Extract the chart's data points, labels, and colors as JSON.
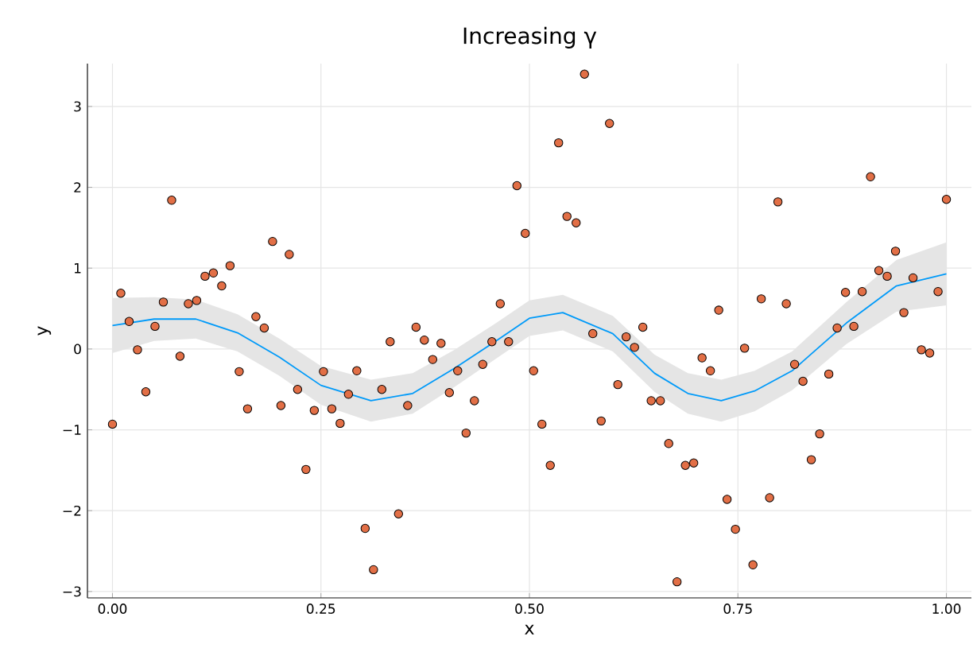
{
  "chart_data": {
    "type": "scatter",
    "title": "Increasing γ",
    "xlabel": "x",
    "ylabel": "y",
    "xlim": [
      -0.03,
      1.03
    ],
    "ylim": [
      -3.08,
      3.53
    ],
    "xticks": [
      {
        "value": 0,
        "label": "0.00"
      },
      {
        "value": 0.25,
        "label": "0.25"
      },
      {
        "value": 0.5,
        "label": "0.50"
      },
      {
        "value": 0.75,
        "label": "0.75"
      },
      {
        "value": 1,
        "label": "1.00"
      }
    ],
    "yticks": [
      {
        "value": -3,
        "label": "−3"
      },
      {
        "value": -2,
        "label": "−2"
      },
      {
        "value": -1,
        "label": "−1"
      },
      0,
      1,
      2,
      3
    ],
    "grid": true,
    "series": [
      {
        "type": "line",
        "color": "#009af9",
        "x": [
          0,
          0.05,
          0.1,
          0.15,
          0.2,
          0.25,
          0.31,
          0.36,
          0.41,
          0.46,
          0.5,
          0.54,
          0.6,
          0.65,
          0.69,
          0.73,
          0.77,
          0.815,
          0.88,
          0.94,
          1.0
        ],
        "values": [
          0.29,
          0.37,
          0.37,
          0.2,
          -0.1,
          -0.45,
          -0.64,
          -0.55,
          -0.24,
          0.1,
          0.38,
          0.45,
          0.19,
          -0.3,
          -0.55,
          -0.64,
          -0.52,
          -0.27,
          0.32,
          0.78,
          0.93
        ],
        "lower": [
          -0.05,
          0.1,
          0.13,
          -0.03,
          -0.33,
          -0.69,
          -0.9,
          -0.8,
          -0.47,
          -0.12,
          0.16,
          0.23,
          -0.03,
          -0.53,
          -0.8,
          -0.9,
          -0.77,
          -0.51,
          0.06,
          0.46,
          0.54
        ],
        "upper": [
          0.63,
          0.64,
          0.61,
          0.43,
          0.13,
          -0.21,
          -0.38,
          -0.3,
          -0.01,
          0.32,
          0.6,
          0.67,
          0.41,
          -0.07,
          -0.3,
          -0.38,
          -0.27,
          -0.03,
          0.58,
          1.1,
          1.32
        ]
      },
      {
        "color": "#e26f46",
        "marker": "circle",
        "x": [
          0,
          0.01,
          0.02,
          0.03,
          0.04,
          0.051,
          0.061,
          0.071,
          0.081,
          0.091,
          0.101,
          0.111,
          0.121,
          0.131,
          0.141,
          0.152,
          0.162,
          0.172,
          0.182,
          0.192,
          0.202,
          0.212,
          0.222,
          0.232,
          0.242,
          0.253,
          0.263,
          0.273,
          0.283,
          0.293,
          0.303,
          0.313,
          0.323,
          0.333,
          0.343,
          0.354,
          0.364,
          0.374,
          0.384,
          0.394,
          0.404,
          0.414,
          0.424,
          0.434,
          0.444,
          0.455,
          0.465,
          0.475,
          0.485,
          0.495,
          0.505,
          0.515,
          0.525,
          0.535,
          0.545,
          0.556,
          0.566,
          0.576,
          0.586,
          0.596,
          0.606,
          0.616,
          0.626,
          0.636,
          0.646,
          0.657,
          0.667,
          0.677,
          0.687,
          0.697,
          0.707,
          0.717,
          0.727,
          0.737,
          0.747,
          0.758,
          0.768,
          0.778,
          0.788,
          0.798,
          0.808,
          0.818,
          0.828,
          0.838,
          0.848,
          0.859,
          0.869,
          0.879,
          0.889,
          0.899,
          0.909,
          0.919,
          0.929,
          0.939,
          0.949,
          0.96,
          0.97,
          0.98,
          0.99,
          1.0
        ],
        "values": [
          -0.93,
          0.69,
          0.34,
          -0.01,
          -0.53,
          0.28,
          0.58,
          1.84,
          -0.09,
          0.56,
          0.6,
          0.9,
          0.94,
          0.78,
          1.03,
          -0.28,
          -0.74,
          0.4,
          0.26,
          1.33,
          -0.7,
          1.17,
          -0.5,
          -1.49,
          -0.76,
          -0.28,
          -0.74,
          -0.92,
          -0.56,
          -0.27,
          -2.22,
          -2.73,
          -0.5,
          0.09,
          -2.04,
          -0.7,
          0.27,
          0.11,
          -0.13,
          0.07,
          -0.54,
          -0.27,
          -1.04,
          -0.64,
          -0.19,
          0.09,
          0.56,
          0.09,
          2.02,
          1.43,
          -0.27,
          -0.93,
          -1.44,
          2.55,
          1.64,
          1.56,
          3.4,
          0.19,
          -0.89,
          2.79,
          -0.44,
          0.15,
          0.02,
          0.27,
          -0.64,
          -0.64,
          -1.17,
          -2.88,
          -1.44,
          -1.41,
          -0.11,
          -0.27,
          0.48,
          -1.86,
          -2.23,
          0.01,
          -2.67,
          0.62,
          -1.84,
          1.82,
          0.56,
          -0.19,
          -0.4,
          -1.37,
          -1.05,
          -0.31,
          0.26,
          0.7,
          0.28,
          0.71,
          2.13,
          0.97,
          0.9,
          1.21,
          0.45,
          0.88,
          -0.01,
          -0.05,
          0.71,
          1.85
        ]
      }
    ]
  }
}
